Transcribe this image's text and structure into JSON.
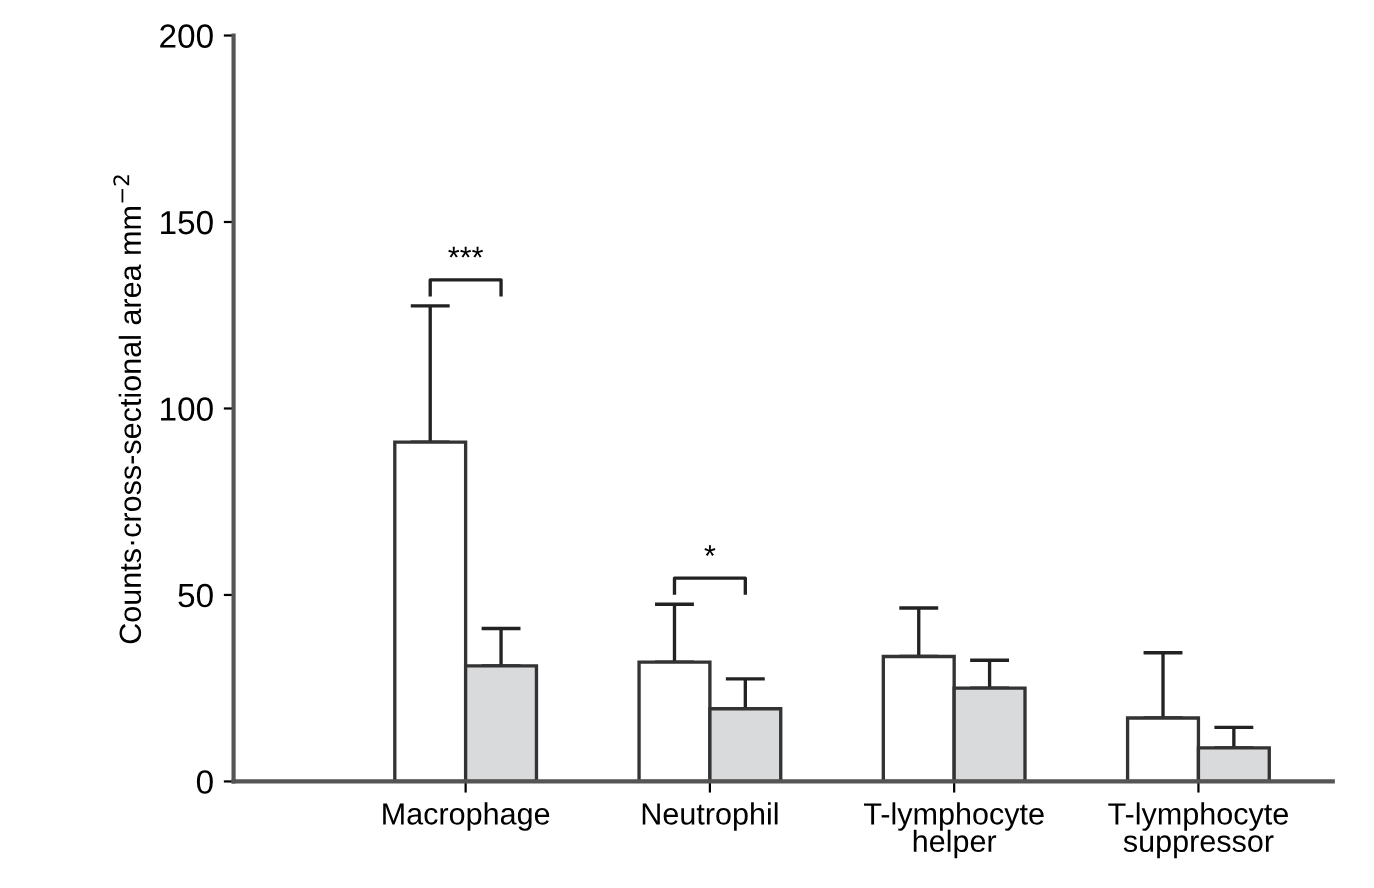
{
  "chart_data": {
    "type": "bar",
    "ylabel": "Counts·cross-sectional area mm$^{−2}$",
    "categories": [
      "Macrophage",
      "Neutrophil",
      "T-lymphocyte\nhelper",
      "T-lymphocyte\nsuppressor"
    ],
    "series": [
      {
        "color": "#ffffff",
        "values": [
          91,
          32,
          33.5,
          17
        ],
        "errors": [
          [
            91,
            127.5
          ],
          [
            32,
            47.5
          ],
          [
            33.5,
            46.5
          ],
          [
            17,
            34.5
          ]
        ]
      },
      {
        "color": "#d9dadb",
        "values": [
          31,
          19.5,
          25,
          9
        ],
        "errors": [
          [
            31,
            41
          ],
          [
            19.5,
            27.5
          ],
          [
            25,
            32.5
          ],
          [
            9,
            14.5
          ]
        ]
      }
    ],
    "annotations": [
      "***",
      "*"
    ],
    "ylim": [
      0,
      200
    ],
    "yticks": [
      0,
      50,
      100,
      150,
      200
    ],
    "grid": false
  }
}
